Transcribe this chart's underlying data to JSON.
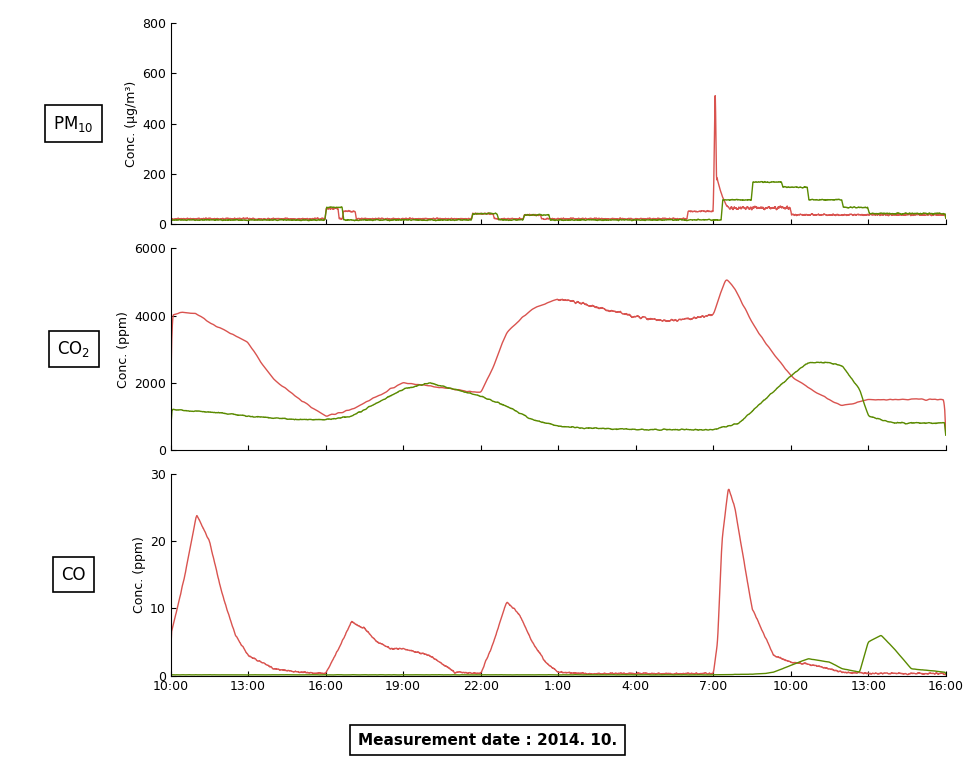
{
  "xlabel_ticks": [
    "10:00",
    "13:00",
    "16:00",
    "19:00",
    "22:00",
    "1:00",
    "4:00",
    "7:00",
    "10:00",
    "13:00",
    "16:00"
  ],
  "pm10_ylim": [
    0,
    800
  ],
  "pm10_yticks": [
    0,
    200,
    400,
    600,
    800
  ],
  "co2_ylim": [
    0,
    6000
  ],
  "co2_yticks": [
    0,
    2000,
    4000,
    6000
  ],
  "co_ylim": [
    0,
    30
  ],
  "co_yticks": [
    0,
    10,
    20,
    30
  ],
  "red_color": "#d9534f",
  "green_color": "#5a8a00",
  "label_pm10": "PM$_{10}$",
  "label_co2": "CO$_{2}$",
  "label_co": "CO",
  "ylabel_pm10": "Conc. (μg/m³)",
  "ylabel_co2": "Conc. (ppm)",
  "ylabel_co": "Conc. (ppm)",
  "footer_text": "Measurement date : 2014. 10.",
  "background": "#ffffff"
}
